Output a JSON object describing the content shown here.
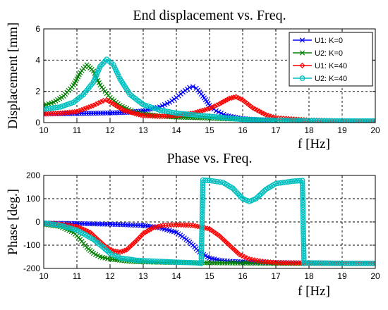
{
  "chart_data": [
    {
      "type": "line",
      "title": "End displacement vs. Freq.",
      "xlabel": "f [Hz]",
      "ylabel": "Displacement [mm]",
      "xlim": [
        10,
        20
      ],
      "ylim": [
        0,
        6
      ],
      "xticks": [
        10,
        11,
        12,
        13,
        14,
        15,
        16,
        17,
        18,
        19,
        20
      ],
      "yticks": [
        0,
        2,
        4,
        6
      ],
      "grid": true,
      "legend_position": "top-right",
      "series": [
        {
          "name": "U1: K=0",
          "color": "#0000ff",
          "marker": "x",
          "x": [
            10,
            10.5,
            11,
            11.5,
            12,
            12.5,
            13,
            13.5,
            13.8,
            14,
            14.2,
            14.4,
            14.5,
            14.6,
            14.8,
            15,
            15.2,
            15.5,
            16,
            16.5,
            17,
            18,
            19,
            20
          ],
          "y": [
            0.55,
            0.57,
            0.58,
            0.6,
            0.62,
            0.65,
            0.75,
            1.0,
            1.3,
            1.6,
            1.95,
            2.25,
            2.3,
            2.2,
            1.7,
            1.1,
            0.75,
            0.45,
            0.25,
            0.18,
            0.15,
            0.12,
            0.1,
            0.1
          ]
        },
        {
          "name": "U2: K=0",
          "color": "#008000",
          "marker": "x",
          "x": [
            10,
            10.3,
            10.6,
            10.9,
            11.1,
            11.3,
            11.5,
            11.7,
            12,
            12.3,
            12.7,
            13,
            13.5,
            14,
            14.5,
            15,
            16,
            17,
            18,
            19,
            20
          ],
          "y": [
            1.1,
            1.3,
            1.7,
            2.4,
            3.2,
            3.7,
            3.3,
            2.4,
            1.6,
            1.1,
            0.7,
            0.55,
            0.42,
            0.35,
            0.32,
            0.28,
            0.2,
            0.15,
            0.12,
            0.1,
            0.1
          ]
        },
        {
          "name": "U1: K=40",
          "color": "#ff0000",
          "marker": "diamond",
          "x": [
            10,
            10.5,
            11,
            11.5,
            11.8,
            11.9,
            12.1,
            12.4,
            12.8,
            13,
            13.5,
            14,
            14.5,
            15,
            15.3,
            15.6,
            15.8,
            16,
            16.3,
            16.7,
            17,
            18,
            19,
            20
          ],
          "y": [
            0.55,
            0.6,
            0.7,
            1.1,
            1.4,
            1.45,
            1.2,
            0.8,
            0.55,
            0.45,
            0.4,
            0.45,
            0.6,
            0.9,
            1.2,
            1.55,
            1.65,
            1.45,
            0.95,
            0.5,
            0.3,
            0.15,
            0.1,
            0.1
          ]
        },
        {
          "name": "U2: K=40",
          "color": "#00bfbf",
          "marker": "o",
          "x": [
            10,
            10.5,
            10.9,
            11.2,
            11.5,
            11.7,
            11.9,
            12.1,
            12.3,
            12.6,
            13,
            13.5,
            14,
            14.5,
            15,
            15.5,
            16,
            17,
            18,
            19,
            20
          ],
          "y": [
            0.85,
            1.0,
            1.3,
            1.8,
            2.6,
            3.6,
            4.05,
            3.7,
            2.8,
            1.8,
            1.15,
            0.8,
            0.6,
            0.5,
            0.4,
            0.3,
            0.2,
            0.15,
            0.12,
            0.1,
            0.1
          ]
        }
      ]
    },
    {
      "type": "line",
      "title": "Phase vs.  Freq.",
      "xlabel": "f [Hz]",
      "ylabel": "Phase [deg.]",
      "xlim": [
        10,
        20
      ],
      "ylim": [
        -200,
        200
      ],
      "xticks": [
        10,
        11,
        12,
        13,
        14,
        15,
        16,
        17,
        18,
        19,
        20
      ],
      "yticks": [
        -200,
        -100,
        0,
        100,
        200
      ],
      "grid": true,
      "series": [
        {
          "name": "U1: K=0",
          "color": "#0000ff",
          "marker": "x",
          "x": [
            10,
            11,
            12,
            13,
            13.5,
            14,
            14.3,
            14.5,
            14.7,
            15,
            15.3,
            15.7,
            16,
            17,
            18,
            19,
            20
          ],
          "y": [
            -5,
            -7,
            -10,
            -15,
            -25,
            -45,
            -75,
            -100,
            -130,
            -155,
            -165,
            -170,
            -172,
            -175,
            -177,
            -178,
            -178
          ]
        },
        {
          "name": "U2: K=0",
          "color": "#008000",
          "marker": "x",
          "x": [
            10,
            10.5,
            10.9,
            11.1,
            11.3,
            11.5,
            11.7,
            12,
            12.5,
            13,
            14,
            15,
            16,
            17,
            18,
            19,
            20
          ],
          "y": [
            -10,
            -20,
            -45,
            -75,
            -110,
            -135,
            -150,
            -160,
            -168,
            -172,
            -175,
            -176,
            -177,
            -178,
            -178,
            -179,
            -179
          ]
        },
        {
          "name": "U1: K=40",
          "color": "#ff0000",
          "marker": "diamond",
          "x": [
            10,
            10.5,
            11,
            11.4,
            11.7,
            11.9,
            12.1,
            12.3,
            12.5,
            12.8,
            13,
            13.3,
            13.6,
            14,
            14.5,
            15,
            15.3,
            15.6,
            15.9,
            16.2,
            16.6,
            17,
            18,
            19,
            20
          ],
          "y": [
            -5,
            -10,
            -20,
            -45,
            -85,
            -110,
            -125,
            -130,
            -120,
            -80,
            -50,
            -25,
            -15,
            -12,
            -15,
            -30,
            -60,
            -100,
            -140,
            -160,
            -170,
            -175,
            -177,
            -178,
            -178
          ]
        },
        {
          "name": "U2: K=40",
          "color": "#00bfbf",
          "marker": "o",
          "x": [
            10,
            10.5,
            11,
            11.5,
            11.8,
            12,
            12.3,
            12.8,
            13.5,
            14,
            14.6,
            14.75,
            14.8,
            15,
            15.4,
            15.7,
            16,
            16.2,
            16.4,
            16.7,
            17,
            17.5,
            17.8,
            17.85,
            17.9,
            18.5,
            19,
            20
          ],
          "y": [
            -5,
            -15,
            -35,
            -75,
            -110,
            -135,
            -155,
            -165,
            -170,
            -173,
            -176,
            -178,
            180,
            178,
            170,
            145,
            100,
            88,
            100,
            140,
            165,
            175,
            178,
            -178,
            -176,
            -177,
            -178,
            -178
          ]
        }
      ]
    }
  ]
}
